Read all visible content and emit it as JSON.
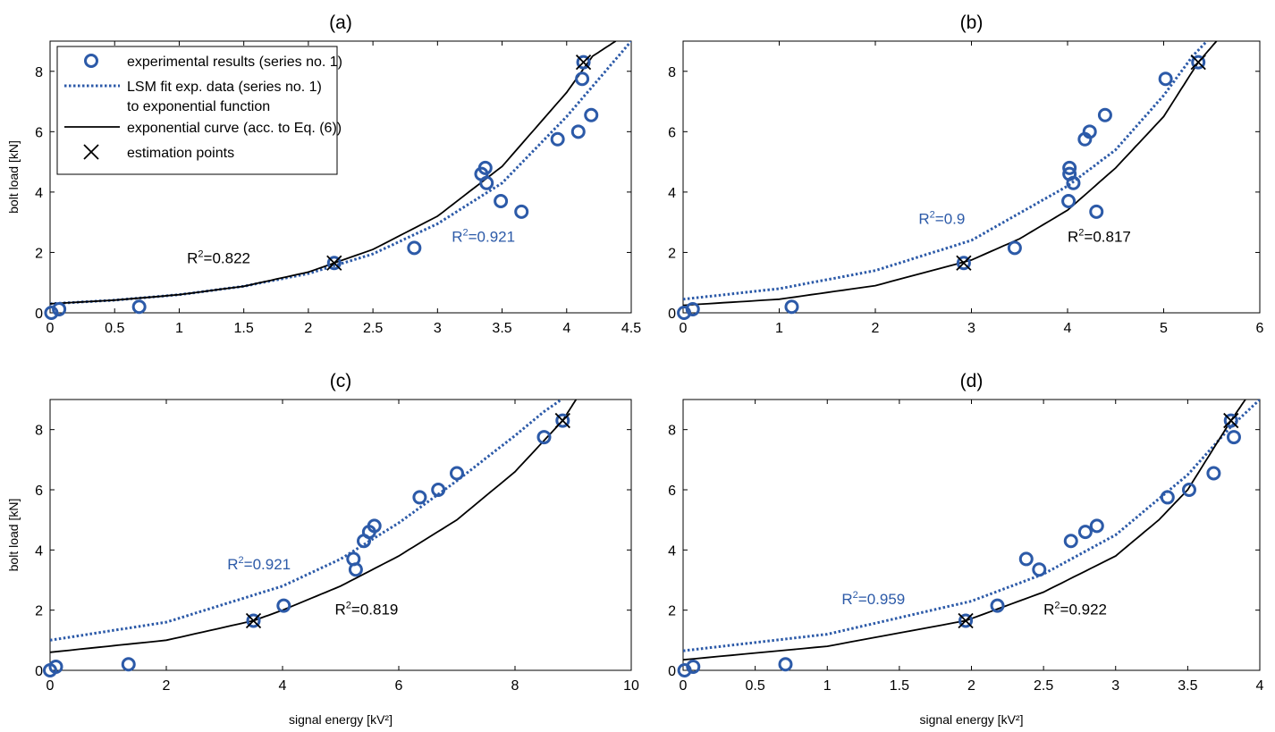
{
  "colors": {
    "blue": "#2c5aa8",
    "black": "#000000"
  },
  "legend": {
    "marker_icon": "circle-marker",
    "items": [
      "experimental results (series no. 1)",
      "LSM fit exp. data (series no. 1)",
      "to  exponential function",
      "exponential curve (acc. to Eq. (6))",
      "estimation points"
    ]
  },
  "chart_data": [
    {
      "id": "a",
      "type": "scatter",
      "title": "(a)",
      "xlabel": "",
      "ylabel": "bolt load [kN]",
      "xlim": [
        0,
        4.5
      ],
      "ylim": [
        0,
        9
      ],
      "xticks": [
        0,
        0.5,
        1,
        1.5,
        2,
        2.5,
        3,
        3.5,
        4,
        4.5
      ],
      "xtick_labels": [
        "0",
        "0.5",
        "1",
        "1.5",
        "2",
        "2.5",
        "3",
        "3.5",
        "4",
        "4.5"
      ],
      "yticks": [
        0,
        2,
        4,
        6,
        8
      ],
      "ytick_labels": [
        "0",
        "2",
        "4",
        "6",
        "8"
      ],
      "legend": true,
      "series": [
        {
          "name": "experimental results (series no. 1)",
          "kind": "markers",
          "x": [
            0.01,
            0.07,
            0.69,
            2.2,
            2.82,
            3.34,
            3.37,
            3.38,
            3.49,
            3.65,
            3.93,
            4.09,
            4.12,
            4.13,
            4.19
          ],
          "y": [
            0.0,
            0.12,
            0.2,
            1.65,
            2.15,
            4.6,
            4.8,
            4.3,
            3.7,
            3.35,
            5.75,
            6.0,
            7.75,
            8.3,
            6.55
          ]
        },
        {
          "name": "LSM fit exp. data (series no. 1)",
          "kind": "dotted",
          "x": [
            0,
            0.5,
            1,
            1.5,
            2,
            2.5,
            3,
            3.5,
            4,
            4.3,
            4.5
          ],
          "y": [
            0.3,
            0.42,
            0.6,
            0.88,
            1.3,
            1.95,
            2.95,
            4.3,
            6.5,
            8.0,
            9.0
          ]
        },
        {
          "name": "exponential curve (acc. to Eq. (6))",
          "kind": "solid",
          "x": [
            0,
            0.5,
            1,
            1.5,
            2,
            2.5,
            3,
            3.5,
            4,
            4.2,
            4.38
          ],
          "y": [
            0.3,
            0.42,
            0.6,
            0.88,
            1.35,
            2.1,
            3.2,
            4.85,
            7.3,
            8.5,
            9.0
          ]
        },
        {
          "name": "estimation points",
          "kind": "cross",
          "x": [
            2.2,
            4.13
          ],
          "y": [
            1.65,
            8.3
          ]
        }
      ],
      "annotations": [
        {
          "text_base": "R",
          "text_sup": "2",
          "text_rest": "=0.822",
          "color": "black",
          "x": 1.06,
          "y": 1.65
        },
        {
          "text_base": "R",
          "text_sup": "2",
          "text_rest": "=0.921",
          "color": "blue",
          "x": 3.11,
          "y": 2.35
        }
      ]
    },
    {
      "id": "b",
      "type": "scatter",
      "title": "(b)",
      "xlabel": "",
      "ylabel": "",
      "xlim": [
        0,
        6
      ],
      "ylim": [
        0,
        9
      ],
      "xticks": [
        0,
        1,
        2,
        3,
        4,
        5,
        6
      ],
      "xtick_labels": [
        "0",
        "1",
        "2",
        "3",
        "4",
        "5",
        "6"
      ],
      "yticks": [
        0,
        2,
        4,
        6,
        8
      ],
      "ytick_labels": [
        "0",
        "2",
        "4",
        "6",
        "8"
      ],
      "legend": false,
      "series": [
        {
          "kind": "markers",
          "x": [
            0.01,
            0.1,
            1.13,
            2.92,
            3.45,
            4.01,
            4.02,
            4.02,
            4.06,
            4.18,
            4.23,
            4.3,
            4.39,
            5.02,
            5.36
          ],
          "y": [
            0.0,
            0.12,
            0.2,
            1.65,
            2.15,
            3.7,
            4.6,
            4.8,
            4.3,
            5.75,
            6.0,
            3.35,
            6.55,
            7.75,
            8.3
          ]
        },
        {
          "kind": "dotted",
          "x": [
            0,
            1,
            2,
            3,
            4,
            4.5,
            5,
            5.3,
            5.45
          ],
          "y": [
            0.45,
            0.8,
            1.4,
            2.4,
            4.2,
            5.4,
            7.2,
            8.5,
            9.0
          ]
        },
        {
          "kind": "solid",
          "x": [
            0,
            1,
            2,
            3,
            3.5,
            4,
            4.5,
            5,
            5.36,
            5.55
          ],
          "y": [
            0.25,
            0.45,
            0.9,
            1.75,
            2.45,
            3.4,
            4.8,
            6.5,
            8.3,
            9.0
          ]
        },
        {
          "kind": "cross",
          "x": [
            2.92,
            5.36
          ],
          "y": [
            1.65,
            8.3
          ]
        }
      ],
      "annotations": [
        {
          "text_base": "R",
          "text_sup": "2",
          "text_rest": "=0.9",
          "color": "blue",
          "x": 2.45,
          "y": 2.95
        },
        {
          "text_base": "R",
          "text_sup": "2",
          "text_rest": "=0.817",
          "color": "black",
          "x": 4.0,
          "y": 2.35
        }
      ]
    },
    {
      "id": "c",
      "type": "scatter",
      "title": "(c)",
      "xlabel": "signal energy [kV²]",
      "ylabel": "bolt load [kN]",
      "xlim": [
        0,
        10
      ],
      "ylim": [
        0,
        9
      ],
      "xticks": [
        0,
        2,
        4,
        6,
        8,
        10
      ],
      "xtick_labels": [
        "0",
        "2",
        "4",
        "6",
        "8",
        "10"
      ],
      "yticks": [
        0,
        2,
        4,
        6,
        8
      ],
      "ytick_labels": [
        "0",
        "2",
        "4",
        "6",
        "8"
      ],
      "legend": false,
      "series": [
        {
          "kind": "markers",
          "x": [
            0.0,
            0.1,
            1.35,
            3.5,
            4.02,
            5.22,
            5.26,
            5.4,
            5.49,
            5.58,
            6.36,
            6.68,
            7.0,
            8.5,
            8.82
          ],
          "y": [
            0.0,
            0.12,
            0.2,
            1.65,
            2.15,
            3.7,
            3.35,
            4.3,
            4.6,
            4.8,
            5.75,
            6.0,
            6.55,
            7.75,
            8.3
          ]
        },
        {
          "kind": "dotted",
          "x": [
            0,
            2,
            4,
            5,
            6,
            7,
            8,
            8.5,
            8.8
          ],
          "y": [
            1.0,
            1.6,
            2.8,
            3.7,
            4.9,
            6.3,
            7.8,
            8.6,
            9.0
          ]
        },
        {
          "kind": "solid",
          "x": [
            0,
            2,
            3.5,
            4,
            5,
            6,
            7,
            8,
            8.82,
            9.05
          ],
          "y": [
            0.6,
            1.0,
            1.65,
            2.0,
            2.8,
            3.8,
            5.0,
            6.6,
            8.3,
            9.0
          ]
        },
        {
          "kind": "cross",
          "x": [
            3.5,
            8.82
          ],
          "y": [
            1.65,
            8.3
          ]
        }
      ],
      "annotations": [
        {
          "text_base": "R",
          "text_sup": "2",
          "text_rest": "=0.921",
          "color": "blue",
          "x": 3.05,
          "y": 3.35
        },
        {
          "text_base": "R",
          "text_sup": "2",
          "text_rest": "=0.819",
          "color": "black",
          "x": 4.9,
          "y": 1.85
        }
      ]
    },
    {
      "id": "d",
      "type": "scatter",
      "title": "(d)",
      "xlabel": "signal energy [kV²]",
      "ylabel": "",
      "xlim": [
        0,
        4
      ],
      "ylim": [
        0,
        9
      ],
      "xticks": [
        0,
        0.5,
        1,
        1.5,
        2,
        2.5,
        3,
        3.5,
        4
      ],
      "xtick_labels": [
        "0",
        "0.5",
        "1",
        "1.5",
        "2",
        "2.5",
        "3",
        "3.5",
        "4"
      ],
      "yticks": [
        0,
        2,
        4,
        6,
        8
      ],
      "ytick_labels": [
        "0",
        "2",
        "4",
        "6",
        "8"
      ],
      "legend": false,
      "series": [
        {
          "kind": "markers",
          "x": [
            0.01,
            0.07,
            0.71,
            1.96,
            2.18,
            2.38,
            2.47,
            2.69,
            2.79,
            2.87,
            3.36,
            3.51,
            3.68,
            3.8,
            3.82
          ],
          "y": [
            0.0,
            0.12,
            0.2,
            1.65,
            2.15,
            3.7,
            3.35,
            4.3,
            4.6,
            4.8,
            5.75,
            6.0,
            6.55,
            8.3,
            7.75
          ]
        },
        {
          "kind": "dotted",
          "x": [
            0,
            1,
            2,
            2.5,
            3,
            3.5,
            3.8,
            4.0
          ],
          "y": [
            0.65,
            1.2,
            2.3,
            3.2,
            4.5,
            6.5,
            8.1,
            9.0
          ]
        },
        {
          "kind": "solid",
          "x": [
            0,
            1,
            1.96,
            2.5,
            3,
            3.3,
            3.5,
            3.8,
            3.9
          ],
          "y": [
            0.35,
            0.8,
            1.65,
            2.6,
            3.8,
            5.0,
            6.0,
            8.3,
            9.0
          ]
        },
        {
          "kind": "cross",
          "x": [
            1.96,
            3.8
          ],
          "y": [
            1.65,
            8.3
          ]
        }
      ],
      "annotations": [
        {
          "text_base": "R",
          "text_sup": "2",
          "text_rest": "=0.959",
          "color": "blue",
          "x": 1.1,
          "y": 2.2
        },
        {
          "text_base": "R",
          "text_sup": "2",
          "text_rest": "=0.922",
          "color": "black",
          "x": 2.5,
          "y": 1.85
        }
      ]
    }
  ]
}
